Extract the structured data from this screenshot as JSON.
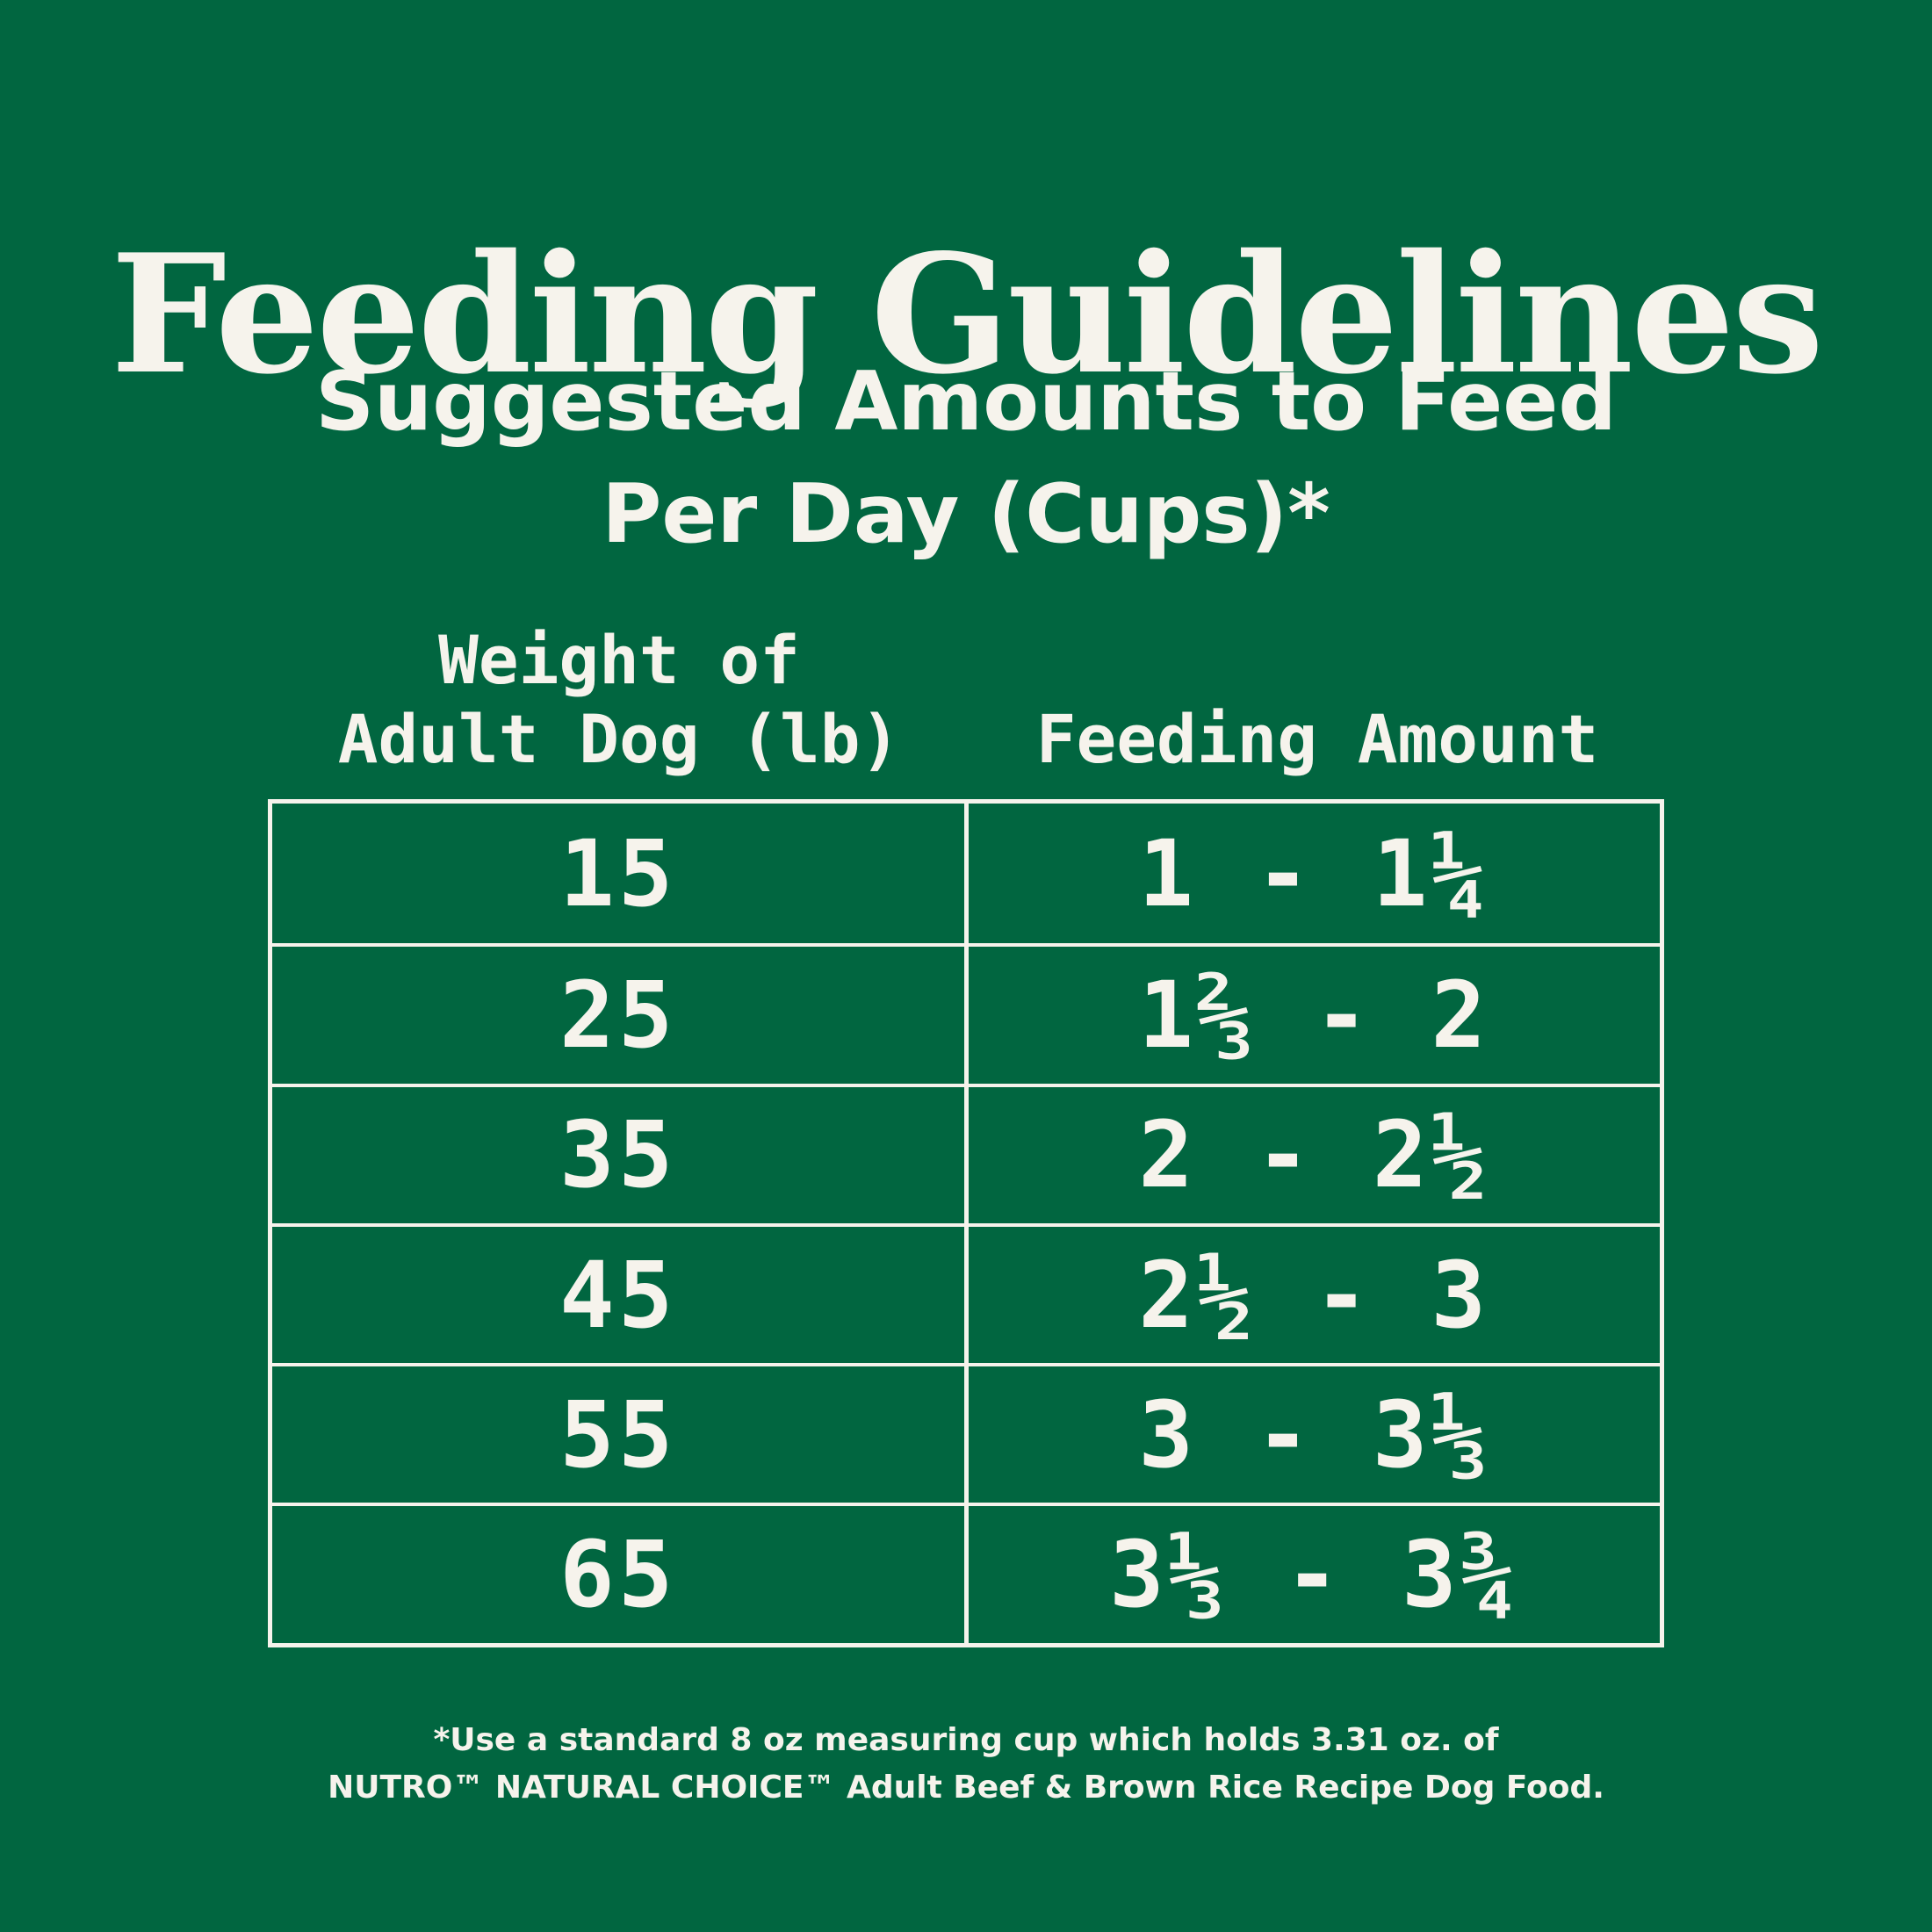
{
  "title": "Feeding Guidelines",
  "subtitle": {
    "line1": "Suggested Amounts to Feed",
    "line2": "Per Day (Cups)*"
  },
  "table": {
    "headers": {
      "weight_line1": "Weight of",
      "weight_line2": "Adult Dog (lb)",
      "amount": "Feeding Amount"
    },
    "rows": [
      {
        "weight": "15",
        "amount": "1 - 1¼"
      },
      {
        "weight": "25",
        "amount": "1⅔ - 2"
      },
      {
        "weight": "35",
        "amount": "2 - 2½"
      },
      {
        "weight": "45",
        "amount": "2½ - 3"
      },
      {
        "weight": "55",
        "amount": "3 - 3⅓"
      },
      {
        "weight": "65",
        "amount": "3⅓ - 3¾"
      }
    ]
  },
  "footnote": {
    "line1": "*Use a standard 8 oz measuring cup which holds 3.31 oz. of",
    "line2": "NUTRO™ NATURAL CHOICE™ Adult Beef & Brown Rice Recipe Dog Food."
  },
  "colors": {
    "background": "#016640",
    "foreground": "#f6f3ec"
  }
}
